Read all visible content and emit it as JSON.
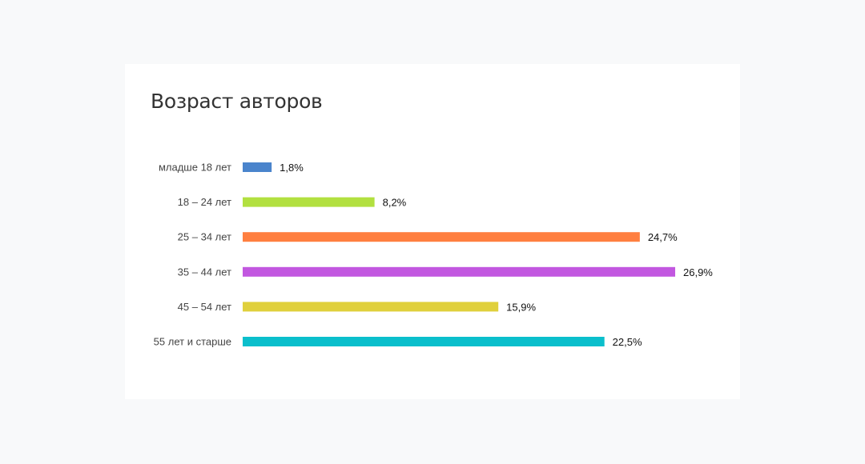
{
  "chart_data": {
    "type": "bar",
    "orientation": "horizontal",
    "title": "Возраст авторов",
    "categories": [
      "младше 18 лет",
      "18 – 24 лет",
      "25 – 34 лет",
      "35 – 44 лет",
      "45 – 54 лет",
      "55 лет и старше"
    ],
    "values": [
      1.8,
      8.2,
      24.7,
      26.9,
      15.9,
      22.5
    ],
    "value_labels": [
      "1,8%",
      "8,2%",
      "24,7%",
      "26,9%",
      "15,9%",
      "22,5%"
    ],
    "colors": [
      "#4a84cc",
      "#b2e040",
      "#ff7f40",
      "#c257e0",
      "#e0d03c",
      "#0bbfcc"
    ],
    "unit": "%",
    "xlabel": "",
    "ylabel": "",
    "grid": false
  }
}
